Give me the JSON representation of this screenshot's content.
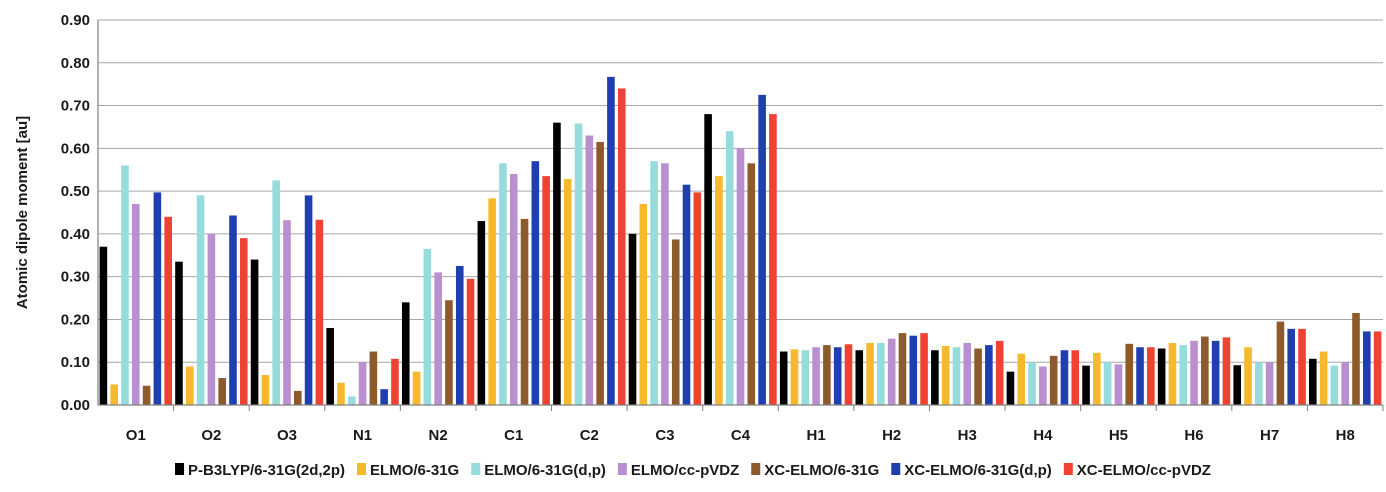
{
  "chart_data": {
    "type": "bar",
    "title": "",
    "xlabel": "",
    "ylabel": "Atomic dipole moment [au]",
    "ylim": [
      0,
      0.9
    ],
    "ytick_step": 0.1,
    "ytick_labels": [
      "0.00",
      "0.10",
      "0.20",
      "0.30",
      "0.40",
      "0.50",
      "0.60",
      "0.70",
      "0.80",
      "0.90"
    ],
    "grid": true,
    "legend_position": "bottom",
    "categories": [
      "O1",
      "O2",
      "O3",
      "N1",
      "N2",
      "C1",
      "C2",
      "C3",
      "C4",
      "H1",
      "H2",
      "H3",
      "H4",
      "H5",
      "H6",
      "H7",
      "H8"
    ],
    "series": [
      {
        "name": "P-B3LYP/6-31G(2d,2p)",
        "color": "#000000",
        "values": [
          0.37,
          0.335,
          0.34,
          0.18,
          0.24,
          0.43,
          0.66,
          0.4,
          0.68,
          0.125,
          0.128,
          0.128,
          0.078,
          0.092,
          0.132,
          0.093,
          0.108
        ]
      },
      {
        "name": "ELMO/6-31G",
        "color": "#f6b82c",
        "values": [
          0.048,
          0.09,
          0.07,
          0.052,
          0.078,
          0.483,
          0.528,
          0.47,
          0.535,
          0.13,
          0.145,
          0.138,
          0.12,
          0.122,
          0.145,
          0.135,
          0.125
        ]
      },
      {
        "name": "ELMO/6-31G(d,p)",
        "color": "#96dcdc",
        "values": [
          0.56,
          0.49,
          0.525,
          0.02,
          0.365,
          0.565,
          0.658,
          0.57,
          0.64,
          0.128,
          0.145,
          0.135,
          0.1,
          0.1,
          0.14,
          0.1,
          0.092
        ]
      },
      {
        "name": "ELMO/cc-pVDZ",
        "color": "#b98fcf",
        "values": [
          0.47,
          0.4,
          0.432,
          0.1,
          0.31,
          0.54,
          0.63,
          0.565,
          0.6,
          0.135,
          0.155,
          0.145,
          0.09,
          0.095,
          0.15,
          0.1,
          0.1
        ]
      },
      {
        "name": "XC-ELMO/6-31G",
        "color": "#8c5a2b",
        "values": [
          0.045,
          0.063,
          0.033,
          0.125,
          0.245,
          0.435,
          0.615,
          0.387,
          0.565,
          0.14,
          0.168,
          0.132,
          0.115,
          0.143,
          0.16,
          0.195,
          0.215
        ]
      },
      {
        "name": "XC-ELMO/6-31G(d,p)",
        "color": "#1f3fb0",
        "values": [
          0.497,
          0.443,
          0.49,
          0.037,
          0.325,
          0.57,
          0.767,
          0.515,
          0.725,
          0.135,
          0.162,
          0.14,
          0.128,
          0.135,
          0.15,
          0.178,
          0.172
        ]
      },
      {
        "name": "XC-ELMO/cc-pVDZ",
        "color": "#ef4233",
        "values": [
          0.44,
          0.39,
          0.433,
          0.108,
          0.295,
          0.535,
          0.74,
          0.497,
          0.68,
          0.142,
          0.168,
          0.15,
          0.128,
          0.135,
          0.158,
          0.178,
          0.172
        ]
      }
    ]
  }
}
